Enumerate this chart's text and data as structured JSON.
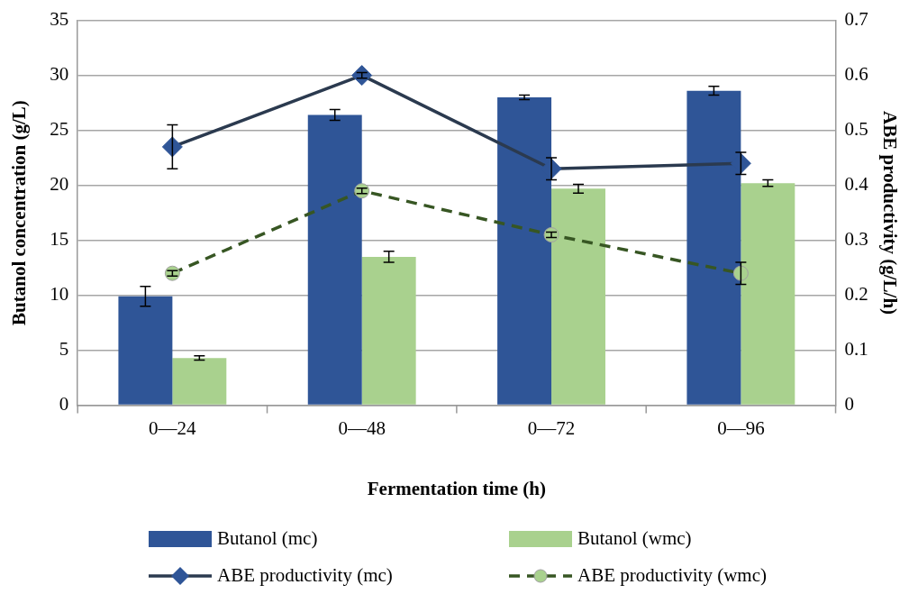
{
  "chart_data": {
    "type": "bar",
    "xlabel": "Fermentation time (h)",
    "ylabel": "Butanol concentration (g/L)",
    "y2label": "ABE productivity (g/L/h)",
    "categories": [
      "0—24",
      "0—48",
      "0—72",
      "0—96"
    ],
    "series": [
      {
        "name": "Butanol (mc)",
        "color": "#2f5597",
        "values": [
          9.9,
          26.4,
          28.0,
          28.6
        ],
        "errors": [
          0.9,
          0.5,
          0.2,
          0.4
        ]
      },
      {
        "name": "Butanol (wmc)",
        "color": "#a9d18e",
        "values": [
          4.3,
          13.5,
          19.7,
          20.2
        ],
        "errors": [
          0.2,
          0.5,
          0.4,
          0.3
        ]
      },
      {
        "name": "ABE productivity (mc)",
        "type": "line",
        "axis": "y2",
        "color": "#2b3a4f",
        "marker": "diamond",
        "line_style": "solid",
        "values": [
          0.47,
          0.6,
          0.43,
          0.44
        ],
        "errors": [
          0.04,
          0.005,
          0.02,
          0.02
        ]
      },
      {
        "name": "ABE productivity (wmc)",
        "type": "line",
        "axis": "y2",
        "color": "#375623",
        "marker": "circle",
        "line_style": "dashed",
        "values": [
          0.24,
          0.39,
          0.31,
          0.24
        ],
        "errors": [
          0.005,
          0.005,
          0.005,
          0.02
        ]
      }
    ],
    "ylim": [
      0,
      35
    ],
    "yticks": [
      0,
      5,
      10,
      15,
      20,
      25,
      30,
      35
    ],
    "y2lim": [
      0,
      0.7
    ],
    "y2ticks": [
      0,
      0.1,
      0.2,
      0.3,
      0.4,
      0.5,
      0.6,
      0.7
    ],
    "grid": "y",
    "legend": "bottom"
  }
}
